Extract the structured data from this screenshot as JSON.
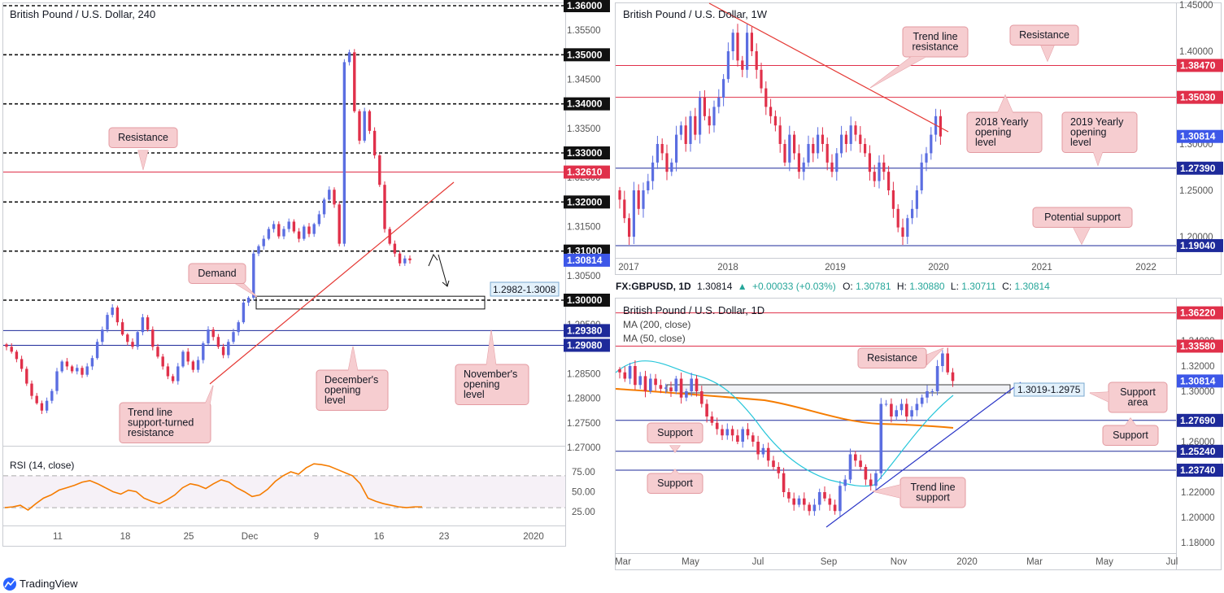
{
  "colors": {
    "up": "#5b6ee1",
    "down": "#e0304a",
    "resistance": "#e0304a",
    "support": "#1e2a9a",
    "trend": "#e53935",
    "callout_fill": "#f6cdd0",
    "callout_stroke": "#e39aa1",
    "rsi": "#f57c00",
    "ma200": "#f57c00",
    "ma50": "#26c6da",
    "support_trend": "#2a35c7"
  },
  "brand": {
    "label": "TradingView"
  },
  "panel_h4": {
    "title": "British Pound / U.S. Dollar, 240",
    "prices": [
      {
        "value": 1.36,
        "label": "1.36000",
        "kind": "round"
      },
      {
        "value": 1.35,
        "label": "1.35000",
        "kind": "round"
      },
      {
        "value": 1.34,
        "label": "1.34000",
        "kind": "round"
      },
      {
        "value": 1.33,
        "label": "1.33000",
        "kind": "round"
      },
      {
        "value": 1.3261,
        "label": "1.32610",
        "kind": "red"
      },
      {
        "value": 1.32,
        "label": "1.32000",
        "kind": "round"
      },
      {
        "value": 1.31,
        "label": "1.31000",
        "kind": "round"
      },
      {
        "value": 1.30814,
        "label": "1.30814",
        "kind": "current"
      },
      {
        "value": 1.3,
        "label": "1.30000",
        "kind": "round"
      },
      {
        "value": 1.2938,
        "label": "1.29380",
        "kind": "blue"
      },
      {
        "value": 1.2908,
        "label": "1.29080",
        "kind": "blue"
      }
    ],
    "ticks": [
      {
        "value": 1.355,
        "label": "1.35500"
      },
      {
        "value": 1.345,
        "label": "1.34500"
      },
      {
        "value": 1.335,
        "label": "1.33500"
      },
      {
        "value": 1.325,
        "label": "1.32500"
      },
      {
        "value": 1.315,
        "label": "1.31500"
      },
      {
        "value": 1.305,
        "label": "1.30500"
      },
      {
        "value": 1.295,
        "label": "1.29500"
      },
      {
        "value": 1.285,
        "label": "1.28500"
      },
      {
        "value": 1.28,
        "label": "1.28000"
      },
      {
        "value": 1.275,
        "label": "1.27500"
      },
      {
        "value": 1.27,
        "label": "1.27000"
      }
    ],
    "xlabels": [
      "11",
      "18",
      "25",
      "Dec",
      "9",
      "16",
      "23",
      "2020"
    ],
    "zone_label": "1.2982-1.3008",
    "callouts": {
      "resistance": "Resistance",
      "demand": "Demand",
      "trend": [
        "Trend line",
        "support-turned",
        "resistance"
      ],
      "december": [
        "December's",
        "opening",
        "level"
      ],
      "november": [
        "November's",
        "opening",
        "level"
      ]
    },
    "rsi": {
      "title": "RSI (14, close)",
      "levels": [
        {
          "value": 75,
          "label": "75.00"
        },
        {
          "value": 50,
          "label": "50.00"
        },
        {
          "value": 25,
          "label": "25.00"
        }
      ],
      "values": [
        30,
        31,
        33,
        27,
        35,
        42,
        46,
        52,
        55,
        58,
        62,
        64,
        60,
        55,
        50,
        47,
        52,
        50,
        42,
        38,
        35,
        40,
        46,
        55,
        60,
        58,
        54,
        60,
        65,
        62,
        55,
        50,
        44,
        46,
        53,
        63,
        70,
        75,
        72,
        80,
        85,
        84,
        82,
        78,
        74,
        70,
        60,
        42,
        38,
        35,
        33,
        31,
        30,
        31,
        31
      ]
    },
    "candles_approx": [
      [
        1.289,
        1.2905
      ],
      [
        1.2905,
        1.2895
      ],
      [
        1.2895,
        1.288
      ],
      [
        1.288,
        1.286
      ],
      [
        1.286,
        1.283
      ],
      [
        1.283,
        1.2805
      ],
      [
        1.2805,
        1.279
      ],
      [
        1.279,
        1.2775
      ],
      [
        1.2775,
        1.2795
      ],
      [
        1.2795,
        1.2815
      ],
      [
        1.2815,
        1.2855
      ],
      [
        1.2855,
        1.2875
      ],
      [
        1.2875,
        1.2865
      ],
      [
        1.2865,
        1.2855
      ],
      [
        1.2855,
        1.2862
      ],
      [
        1.2862,
        1.2848
      ],
      [
        1.2848,
        1.2865
      ],
      [
        1.2865,
        1.2882
      ],
      [
        1.2882,
        1.2915
      ],
      [
        1.2915,
        1.294
      ],
      [
        1.294,
        1.297
      ],
      [
        1.297,
        1.2985
      ],
      [
        1.2985,
        1.2955
      ],
      [
        1.2955,
        1.293
      ],
      [
        1.293,
        1.2915
      ],
      [
        1.2915,
        1.2905
      ],
      [
        1.2905,
        1.2935
      ],
      [
        1.2935,
        1.2965
      ],
      [
        1.2965,
        1.294
      ],
      [
        1.294,
        1.2905
      ],
      [
        1.2905,
        1.2885
      ],
      [
        1.2885,
        1.2865
      ],
      [
        1.2865,
        1.2845
      ],
      [
        1.2845,
        1.2835
      ],
      [
        1.2835,
        1.2865
      ],
      [
        1.2865,
        1.2895
      ],
      [
        1.2895,
        1.2875
      ],
      [
        1.2875,
        1.2858
      ],
      [
        1.2858,
        1.2878
      ],
      [
        1.2878,
        1.2912
      ],
      [
        1.2912,
        1.294
      ],
      [
        1.294,
        1.2925
      ],
      [
        1.2925,
        1.2905
      ],
      [
        1.2905,
        1.2888
      ],
      [
        1.2888,
        1.2915
      ],
      [
        1.2915,
        1.2935
      ],
      [
        1.2935,
        1.2955
      ],
      [
        1.2955,
        1.2995
      ],
      [
        1.2995,
        1.3005
      ],
      [
        1.3005,
        1.3095
      ],
      [
        1.3095,
        1.311
      ],
      [
        1.311,
        1.3125
      ],
      [
        1.3125,
        1.3145
      ],
      [
        1.3145,
        1.3155
      ],
      [
        1.3155,
        1.313
      ],
      [
        1.313,
        1.3145
      ],
      [
        1.3145,
        1.316
      ],
      [
        1.316,
        1.314
      ],
      [
        1.314,
        1.3125
      ],
      [
        1.3125,
        1.315
      ],
      [
        1.315,
        1.3135
      ],
      [
        1.3135,
        1.3155
      ],
      [
        1.3155,
        1.3175
      ],
      [
        1.3175,
        1.3205
      ],
      [
        1.3205,
        1.3225
      ],
      [
        1.3225,
        1.3195
      ],
      [
        1.3195,
        1.3115
      ],
      [
        1.3115,
        1.3485
      ],
      [
        1.3485,
        1.3505
      ],
      [
        1.3505,
        1.3385
      ],
      [
        1.3385,
        1.3325
      ],
      [
        1.3325,
        1.3385
      ],
      [
        1.3385,
        1.3345
      ],
      [
        1.3345,
        1.3295
      ],
      [
        1.3295,
        1.3235
      ],
      [
        1.3235,
        1.3145
      ],
      [
        1.3145,
        1.3115
      ],
      [
        1.3115,
        1.3095
      ],
      [
        1.3095,
        1.3075
      ],
      [
        1.3075,
        1.3085
      ],
      [
        1.3085,
        1.30814
      ]
    ]
  },
  "panel_w1": {
    "title": "British Pound / U.S. Dollar, 1W",
    "prices": [
      {
        "value": 1.3847,
        "label": "1.38470",
        "kind": "red"
      },
      {
        "value": 1.3503,
        "label": "1.35030",
        "kind": "red"
      },
      {
        "value": 1.30814,
        "label": "1.30814",
        "kind": "current"
      },
      {
        "value": 1.2739,
        "label": "1.27390",
        "kind": "blue"
      },
      {
        "value": 1.1904,
        "label": "1.19040",
        "kind": "blue"
      }
    ],
    "ticks": [
      {
        "value": 1.45,
        "label": "1.45000"
      },
      {
        "value": 1.4,
        "label": "1.40000"
      },
      {
        "value": 1.35,
        "label": "1.35000"
      },
      {
        "value": 1.3,
        "label": "1.30000"
      },
      {
        "value": 1.25,
        "label": "1.25000"
      },
      {
        "value": 1.2,
        "label": "1.20000"
      }
    ],
    "xlabels": [
      "2017",
      "2018",
      "2019",
      "2020",
      "2021",
      "2022"
    ],
    "callouts": {
      "trend": [
        "Trend line",
        "resistance"
      ],
      "resistance": "Resistance",
      "y2018": [
        "2018 Yearly",
        "opening",
        "level"
      ],
      "y2019": [
        "2019 Yearly",
        "opening",
        "level"
      ],
      "potential": "Potential support"
    },
    "closes_approx": [
      1.24,
      1.22,
      1.2,
      1.25,
      1.23,
      1.25,
      1.26,
      1.28,
      1.3,
      1.29,
      1.27,
      1.28,
      1.31,
      1.32,
      1.3,
      1.33,
      1.31,
      1.35,
      1.33,
      1.32,
      1.34,
      1.35,
      1.37,
      1.4,
      1.42,
      1.39,
      1.38,
      1.42,
      1.4,
      1.38,
      1.36,
      1.34,
      1.33,
      1.32,
      1.3,
      1.28,
      1.31,
      1.29,
      1.27,
      1.28,
      1.3,
      1.29,
      1.31,
      1.3,
      1.28,
      1.27,
      1.29,
      1.31,
      1.3,
      1.32,
      1.31,
      1.3,
      1.29,
      1.27,
      1.26,
      1.28,
      1.27,
      1.25,
      1.23,
      1.21,
      1.2,
      1.22,
      1.23,
      1.25,
      1.28,
      1.29,
      1.31,
      1.33,
      1.30814
    ]
  },
  "panel_d1": {
    "header": {
      "symbol": "FX:GBPUSD, 1D",
      "price": "1.30814",
      "change": "+0.00033 (+0.03%)",
      "o_label": "O:",
      "o": "1.30781",
      "h_label": "H:",
      "h": "1.30880",
      "l_label": "L:",
      "l": "1.30711",
      "c_label": "C:",
      "c": "1.30814"
    },
    "title": "British Pound / U.S. Dollar, 1D",
    "ma200_label": "MA (200, close)",
    "ma50_label": "MA (50, close)",
    "prices": [
      {
        "value": 1.3622,
        "label": "1.36220",
        "kind": "red"
      },
      {
        "value": 1.3358,
        "label": "1.33580",
        "kind": "red"
      },
      {
        "value": 1.30814,
        "label": "1.30814",
        "kind": "current"
      },
      {
        "value": 1.2769,
        "label": "1.27690",
        "kind": "blue"
      },
      {
        "value": 1.2524,
        "label": "1.25240",
        "kind": "blue"
      },
      {
        "value": 1.2374,
        "label": "1.23740",
        "kind": "blue"
      }
    ],
    "ticks": [
      {
        "value": 1.34,
        "label": "1.34000"
      },
      {
        "value": 1.32,
        "label": "1.32000"
      },
      {
        "value": 1.3,
        "label": "1.30000"
      },
      {
        "value": 1.26,
        "label": "1.26000"
      },
      {
        "value": 1.22,
        "label": "1.22000"
      },
      {
        "value": 1.2,
        "label": "1.20000"
      },
      {
        "value": 1.18,
        "label": "1.18000"
      }
    ],
    "xlabels": [
      "Mar",
      "May",
      "Jul",
      "Sep",
      "Nov",
      "2020",
      "Mar",
      "May",
      "Jul"
    ],
    "zone_label": "1.3019-1.2975",
    "callouts": {
      "resistance": "Resistance",
      "support_area": [
        "Support",
        "area"
      ],
      "support_right": "Support",
      "support_left1": "Support",
      "support_left2": "Support",
      "trend": [
        "Trend line",
        "support"
      ]
    },
    "closes_approx": [
      1.315,
      1.31,
      1.32,
      1.305,
      1.312,
      1.3,
      1.31,
      1.305,
      1.302,
      1.303,
      1.3,
      1.31,
      1.295,
      1.3,
      1.31,
      1.3,
      1.29,
      1.28,
      1.275,
      1.27,
      1.265,
      1.27,
      1.265,
      1.26,
      1.27,
      1.265,
      1.26,
      1.25,
      1.255,
      1.245,
      1.24,
      1.235,
      1.22,
      1.215,
      1.21,
      1.215,
      1.21,
      1.205,
      1.21,
      1.22,
      1.215,
      1.21,
      1.205,
      1.225,
      1.23,
      1.25,
      1.245,
      1.24,
      1.23,
      1.225,
      1.235,
      1.29,
      1.29,
      1.28,
      1.285,
      1.29,
      1.28,
      1.285,
      1.29,
      1.295,
      1.3,
      1.3,
      1.32,
      1.33,
      1.315,
      1.30814
    ]
  }
}
